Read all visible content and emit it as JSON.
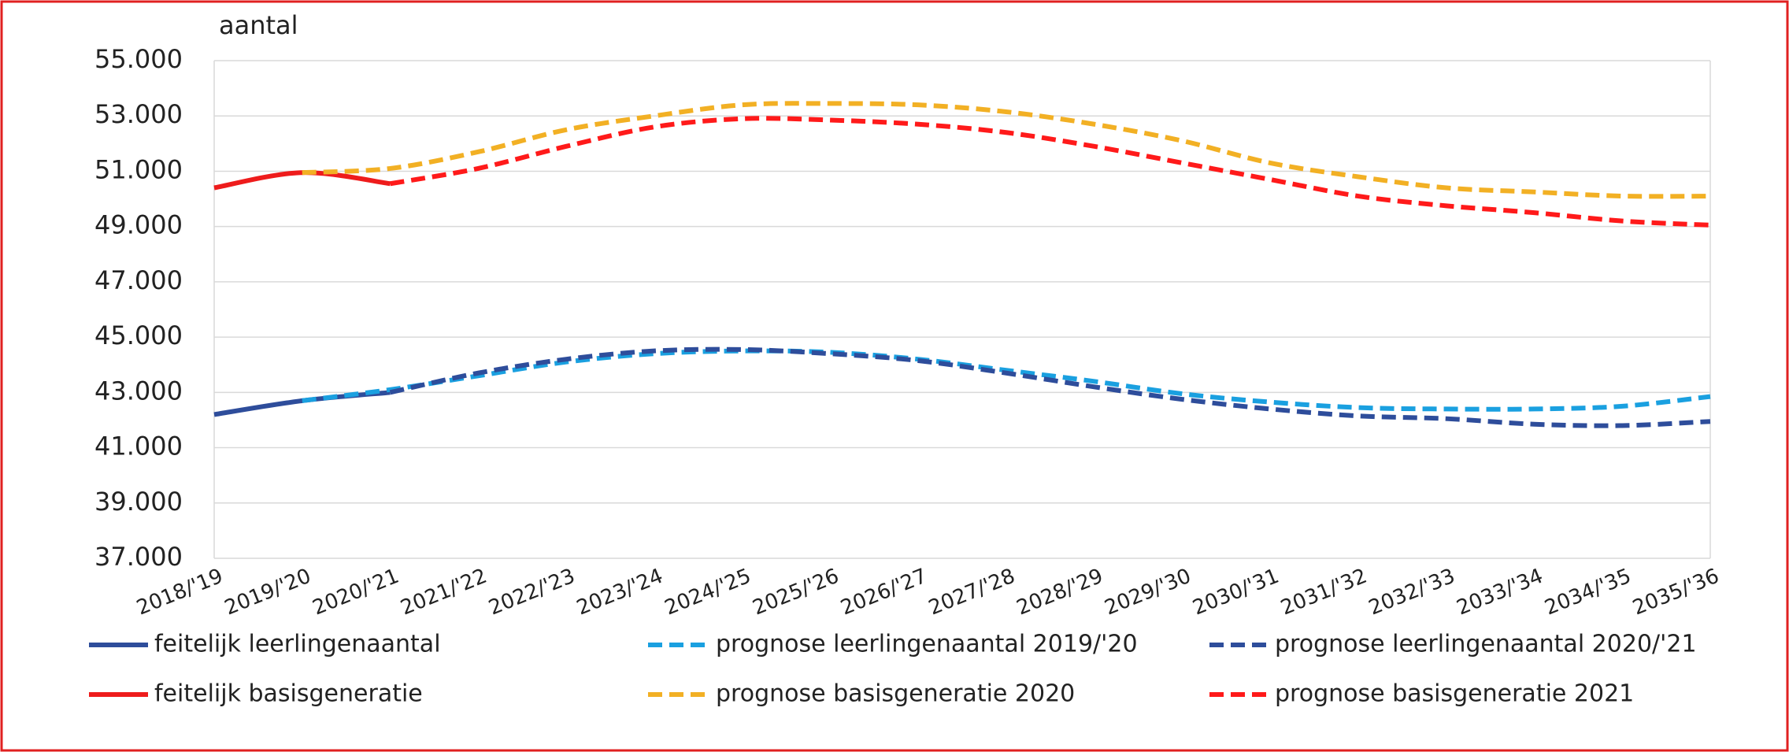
{
  "chart_data": {
    "type": "line",
    "y_label": "aantal",
    "categories": [
      "2018/'19",
      "2019/'20",
      "2020/'21",
      "2021/'22",
      "2022/'23",
      "2023/'24",
      "2024/'25",
      "2025/'26",
      "2026/'27",
      "2027/'28",
      "2028/'29",
      "2029/'30",
      "2030/'31",
      "2031/'32",
      "2032/'33",
      "2033/'34",
      "2034/'35",
      "2035/'36"
    ],
    "series": [
      {
        "name": "feitelijk leerlingenaantal",
        "color": "#2e4d9b",
        "dashed": false,
        "values": [
          42200,
          42700,
          43000,
          null,
          null,
          null,
          null,
          null,
          null,
          null,
          null,
          null,
          null,
          null,
          null,
          null,
          null,
          null
        ]
      },
      {
        "name": "prognose leerlingenaantal 2019/'20",
        "color": "#1aa0e0",
        "dashed": true,
        "values": [
          null,
          42700,
          43100,
          43600,
          44100,
          44400,
          44500,
          44450,
          44200,
          43800,
          43400,
          42950,
          42650,
          42450,
          42400,
          42400,
          42500,
          42850
        ]
      },
      {
        "name": "prognose leerlingenaantal 2020/'21",
        "color": "#2e4d9b",
        "dashed": true,
        "values": [
          null,
          null,
          43000,
          43700,
          44200,
          44500,
          44550,
          44400,
          44150,
          43700,
          43200,
          42750,
          42400,
          42150,
          42050,
          41850,
          41800,
          41950
        ]
      },
      {
        "name": "feitelijk basisgeneratie",
        "color": "#ee1c1c",
        "dashed": false,
        "values": [
          50400,
          50950,
          50550,
          null,
          null,
          null,
          null,
          null,
          null,
          null,
          null,
          null,
          null,
          null,
          null,
          null,
          null,
          null
        ]
      },
      {
        "name": "prognose basisgeneratie 2020",
        "color": "#f2b024",
        "dashed": true,
        "values": [
          null,
          50950,
          51100,
          51700,
          52500,
          53000,
          53400,
          53450,
          53400,
          53150,
          52700,
          52100,
          51300,
          50800,
          50400,
          50250,
          50100,
          50100
        ]
      },
      {
        "name": "prognose basisgeneratie 2021",
        "color": "#ff1a1a",
        "dashed": true,
        "values": [
          null,
          null,
          50550,
          51100,
          51900,
          52600,
          52900,
          52850,
          52700,
          52400,
          51900,
          51300,
          50700,
          50100,
          49750,
          49500,
          49200,
          49050
        ]
      }
    ],
    "ylim": [
      37000,
      55000
    ],
    "yticks": [
      {
        "value": 37000,
        "label": "37.000"
      },
      {
        "value": 39000,
        "label": "39.000"
      },
      {
        "value": 41000,
        "label": "41.000"
      },
      {
        "value": 43000,
        "label": "43.000"
      },
      {
        "value": 45000,
        "label": "45.000"
      },
      {
        "value": 47000,
        "label": "47.000"
      },
      {
        "value": 49000,
        "label": "49.000"
      },
      {
        "value": 51000,
        "label": "51.000"
      },
      {
        "value": 53000,
        "label": "53.000"
      },
      {
        "value": 55000,
        "label": "55.000"
      }
    ],
    "grid": true,
    "legend": "bottom"
  }
}
